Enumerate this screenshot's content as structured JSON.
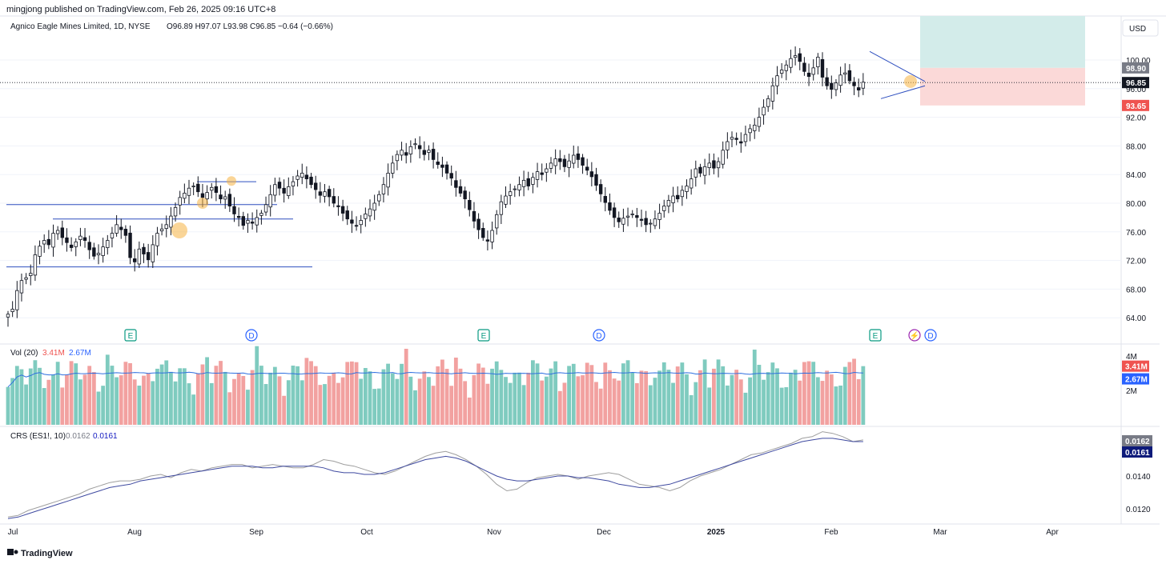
{
  "header": {
    "published": "mingjong published on TradingView.com, Feb 26, 2025 09:16 UTC+8",
    "symbol": "Agnico Eagle Mines Limited, 1D, NYSE",
    "ohlc": "O96.89 H97.07 L93.98 C96.85 −0.64 (−0.66%)"
  },
  "currency_button": "USD",
  "footer": {
    "brand": "TradingView"
  },
  "colors": {
    "up_volume": "#7fcbbf",
    "down_volume": "#f2a1a0",
    "level_line": "#2e4fbf",
    "vol_ma": "#2e6fe0",
    "crs_raw": "#9e9e9e",
    "crs_ma": "#3f4aa0",
    "target_zone": "#d3ecea",
    "stop_zone": "#fbd9d8",
    "highlight": "#f5b342"
  },
  "chart_data": [
    {
      "type": "candlestick",
      "title": "Agnico Eagle Mines Limited, 1D, NYSE",
      "y_axis_ticks": [
        "100.00",
        "96.00",
        "92.00",
        "88.00",
        "84.00",
        "80.00",
        "76.00",
        "72.00",
        "68.00",
        "64.00"
      ],
      "ylim": [
        62,
        103
      ],
      "x_axis_ticks": [
        "Jul",
        "Aug",
        "Sep",
        "Oct",
        "Nov",
        "Dec",
        "2025",
        "Feb",
        "Mar",
        "Apr"
      ],
      "closes": [
        64.5,
        65.2,
        67.8,
        69.2,
        69.6,
        70.2,
        72.8,
        74.0,
        74.8,
        74.2,
        75.8,
        76.2,
        75.2,
        74.5,
        73.8,
        74.6,
        75.4,
        74.8,
        73.5,
        72.6,
        73.0,
        73.9,
        74.8,
        75.8,
        77.0,
        76.3,
        75.5,
        72.4,
        71.8,
        73.6,
        72.9,
        72.1,
        74.2,
        75.8,
        76.4,
        77.0,
        78.2,
        79.4,
        80.8,
        81.4,
        82.1,
        82.4,
        81.6,
        80.8,
        81.5,
        82.2,
        81.5,
        80.6,
        80.9,
        79.6,
        78.5,
        78.0,
        76.9,
        77.6,
        77.2,
        78.0,
        78.6,
        79.8,
        81.2,
        82.6,
        82.1,
        81.4,
        82.3,
        83.0,
        83.8,
        84.2,
        83.4,
        82.6,
        81.9,
        81.1,
        81.6,
        80.9,
        80.0,
        79.5,
        78.6,
        77.8,
        77.2,
        76.8,
        77.6,
        78.5,
        79.2,
        80.0,
        81.2,
        82.6,
        84.2,
        85.6,
        86.8,
        87.4,
        86.7,
        87.9,
        88.3,
        87.6,
        86.8,
        87.4,
        86.1,
        85.4,
        85.0,
        84.2,
        83.5,
        82.2,
        81.4,
        80.6,
        79.1,
        77.5,
        76.3,
        75.2,
        74.7,
        76.2,
        78.4,
        80.2,
        81.0,
        81.6,
        82.0,
        82.6,
        83.2,
        82.4,
        83.6,
        84.4,
        84.0,
        84.8,
        85.6,
        86.2,
        85.8,
        85.1,
        85.9,
        86.7,
        86.1,
        85.3,
        84.6,
        83.7,
        82.5,
        81.3,
        80.1,
        79.0,
        78.0,
        77.4,
        77.9,
        78.2,
        78.5,
        78.0,
        77.6,
        77.0,
        77.2,
        77.8,
        78.6,
        79.6,
        80.4,
        81.0,
        80.6,
        81.8,
        82.4,
        83.4,
        84.8,
        84.2,
        85.1,
        85.6,
        84.9,
        85.8,
        87.4,
        88.6,
        89.2,
        88.9,
        88.4,
        89.6,
        90.4,
        90.9,
        92.0,
        93.4,
        94.6,
        96.4,
        97.8,
        98.6,
        99.3,
        100.2,
        100.6,
        99.8,
        98.4,
        97.7,
        98.9,
        100.4,
        97.6,
        96.4,
        95.9,
        96.8,
        97.9,
        98.2,
        97.1,
        96.4,
        95.8,
        96.9
      ]
    },
    {
      "type": "bar",
      "title": "Vol (20)",
      "volume_value": "3.41M",
      "volume_ma_value": "2.67M",
      "y_axis_ticks": [
        "4M",
        "2M"
      ]
    },
    {
      "type": "line",
      "title": "CRS (ES1!, 10)",
      "crs_value": "0.0162",
      "crs_ma_value": "0.0161",
      "y_axis_ticks": [
        "0.0140",
        "0.0120"
      ],
      "ylim": [
        0.0113,
        0.017
      ],
      "series": [
        {
          "values": [
            0.0115,
            0.0116,
            0.0119,
            0.0121,
            0.0123,
            0.0125,
            0.0127,
            0.0129,
            0.0132,
            0.0134,
            0.0136,
            0.0137,
            0.0137,
            0.0138,
            0.014,
            0.0141,
            0.0139,
            0.0142,
            0.0144,
            0.0143,
            0.0145,
            0.0146,
            0.0147,
            0.0147,
            0.0145,
            0.0146,
            0.0147,
            0.0146,
            0.0145,
            0.0145,
            0.0147,
            0.015,
            0.0149,
            0.0147,
            0.0146,
            0.0144,
            0.0142,
            0.0141,
            0.0143,
            0.0146,
            0.0149,
            0.0152,
            0.0154,
            0.0155,
            0.0153,
            0.015,
            0.0146,
            0.0141,
            0.0135,
            0.0131,
            0.0132,
            0.0136,
            0.0139,
            0.014,
            0.0141,
            0.014,
            0.0138,
            0.014,
            0.0141,
            0.0142,
            0.0141,
            0.0138,
            0.0135,
            0.0134,
            0.0133,
            0.0131,
            0.0133,
            0.0137,
            0.014,
            0.0142,
            0.0144,
            0.0147,
            0.015,
            0.0153,
            0.0154,
            0.0156,
            0.0158,
            0.016,
            0.0163,
            0.0164,
            0.0167,
            0.0166,
            0.0164,
            0.0161,
            0.0162
          ]
        },
        {
          "values": [
            0.0114,
            0.0115,
            0.0117,
            0.0119,
            0.0121,
            0.0123,
            0.0125,
            0.0127,
            0.0129,
            0.0131,
            0.0133,
            0.0134,
            0.0135,
            0.0137,
            0.0138,
            0.0139,
            0.014,
            0.0141,
            0.0142,
            0.0143,
            0.0144,
            0.0145,
            0.0146,
            0.0146,
            0.0146,
            0.0145,
            0.0145,
            0.0146,
            0.0146,
            0.0146,
            0.0146,
            0.0145,
            0.0143,
            0.0142,
            0.0142,
            0.0141,
            0.0141,
            0.0142,
            0.0144,
            0.0146,
            0.0148,
            0.015,
            0.0151,
            0.0152,
            0.0151,
            0.0149,
            0.0146,
            0.0143,
            0.014,
            0.0138,
            0.0137,
            0.0137,
            0.0138,
            0.0139,
            0.014,
            0.014,
            0.0139,
            0.0139,
            0.0138,
            0.0137,
            0.0135,
            0.0134,
            0.0133,
            0.0133,
            0.0134,
            0.0135,
            0.0137,
            0.0139,
            0.0141,
            0.0143,
            0.0145,
            0.0147,
            0.0149,
            0.0151,
            0.0153,
            0.0155,
            0.0157,
            0.0159,
            0.0161,
            0.0162,
            0.0163,
            0.0163,
            0.0162,
            0.0161,
            0.0161
          ]
        }
      ]
    }
  ],
  "price_labels": {
    "target": "98.90",
    "last": "96.85",
    "stop": "93.65"
  },
  "event_markers": [
    "E",
    "D",
    "E",
    "D",
    "E",
    "⚡",
    "D"
  ]
}
